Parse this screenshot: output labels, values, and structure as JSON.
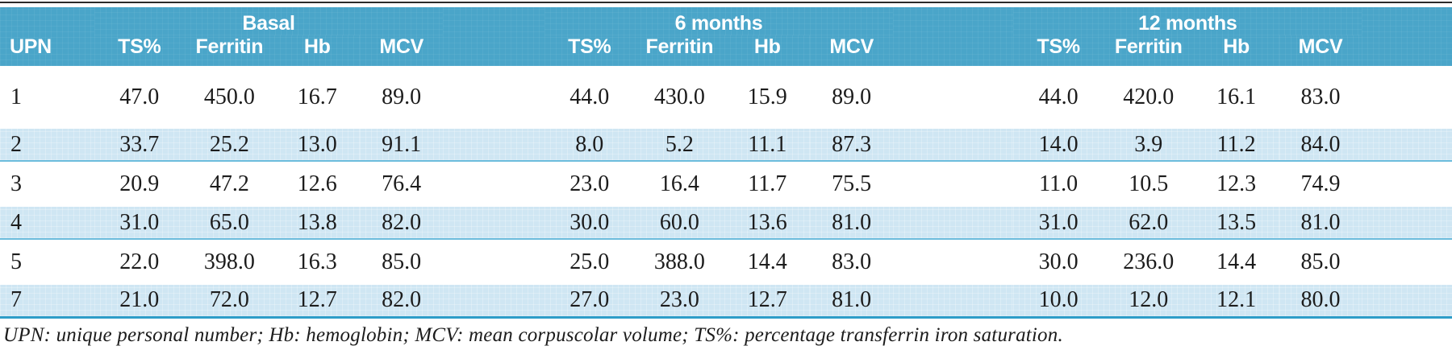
{
  "table": {
    "upn_header": "UPN",
    "groups": [
      "Basal",
      "6 months",
      "12 months"
    ],
    "sub_columns": [
      "TS%",
      "Ferritin",
      "Hb",
      "MCV"
    ],
    "rows": [
      {
        "upn": "1",
        "shaded": false,
        "values": [
          [
            "47.0",
            "450.0",
            "16.7",
            "89.0"
          ],
          [
            "44.0",
            "430.0",
            "15.9",
            "89.0"
          ],
          [
            "44.0",
            "420.0",
            "16.1",
            "83.0"
          ]
        ]
      },
      {
        "upn": "2",
        "shaded": true,
        "values": [
          [
            "33.7",
            "25.2",
            "13.0",
            "91.1"
          ],
          [
            "8.0",
            "5.2",
            "11.1",
            "87.3"
          ],
          [
            "14.0",
            "3.9",
            "11.2",
            "84.0"
          ]
        ]
      },
      {
        "upn": "3",
        "shaded": false,
        "values": [
          [
            "20.9",
            "47.2",
            "12.6",
            "76.4"
          ],
          [
            "23.0",
            "16.4",
            "11.7",
            "75.5"
          ],
          [
            "11.0",
            "10.5",
            "12.3",
            "74.9"
          ]
        ]
      },
      {
        "upn": "4",
        "shaded": true,
        "values": [
          [
            "31.0",
            "65.0",
            "13.8",
            "82.0"
          ],
          [
            "30.0",
            "60.0",
            "13.6",
            "81.0"
          ],
          [
            "31.0",
            "62.0",
            "13.5",
            "81.0"
          ]
        ]
      },
      {
        "upn": "5",
        "shaded": false,
        "values": [
          [
            "22.0",
            "398.0",
            "16.3",
            "85.0"
          ],
          [
            "25.0",
            "388.0",
            "14.4",
            "83.0"
          ],
          [
            "30.0",
            "236.0",
            "14.4",
            "85.0"
          ]
        ]
      },
      {
        "upn": "7",
        "shaded": true,
        "values": [
          [
            "21.0",
            "72.0",
            "12.7",
            "82.0"
          ],
          [
            "27.0",
            "23.0",
            "12.7",
            "81.0"
          ],
          [
            "10.0",
            "12.0",
            "12.1",
            "80.0"
          ]
        ]
      }
    ],
    "footnote": "UPN: unique personal number; Hb: hemoglobin; MCV: mean corpuscolar volume; TS%: percentage transferrin iron saturation."
  },
  "colors": {
    "header_bg": "#4aa5c9",
    "header_text": "#ffffff",
    "stripe_bg": "#cfe6f3",
    "stripe_border": "#6cbcdc",
    "bottom_rule": "#2e9dc8",
    "top_rule": "#2b2b2b",
    "body_text": "#1c1c1c"
  },
  "chart_data": {
    "type": "table",
    "title": "",
    "column_groups": [
      "Basal",
      "6 months",
      "12 months"
    ],
    "columns": [
      "UPN",
      "TS%",
      "Ferritin",
      "Hb",
      "MCV",
      "TS%",
      "Ferritin",
      "Hb",
      "MCV",
      "TS%",
      "Ferritin",
      "Hb",
      "MCV"
    ],
    "rows": [
      [
        "1",
        47.0,
        450.0,
        16.7,
        89.0,
        44.0,
        430.0,
        15.9,
        89.0,
        44.0,
        420.0,
        16.1,
        83.0
      ],
      [
        "2",
        33.7,
        25.2,
        13.0,
        91.1,
        8.0,
        5.2,
        11.1,
        87.3,
        14.0,
        3.9,
        11.2,
        84.0
      ],
      [
        "3",
        20.9,
        47.2,
        12.6,
        76.4,
        23.0,
        16.4,
        11.7,
        75.5,
        11.0,
        10.5,
        12.3,
        74.9
      ],
      [
        "4",
        31.0,
        65.0,
        13.8,
        82.0,
        30.0,
        60.0,
        13.6,
        81.0,
        31.0,
        62.0,
        13.5,
        81.0
      ],
      [
        "5",
        22.0,
        398.0,
        16.3,
        85.0,
        25.0,
        388.0,
        14.4,
        83.0,
        30.0,
        236.0,
        14.4,
        85.0
      ],
      [
        "7",
        21.0,
        72.0,
        12.7,
        82.0,
        27.0,
        23.0,
        12.7,
        81.0,
        10.0,
        12.0,
        12.1,
        80.0
      ]
    ],
    "footnote": "UPN: unique personal number; Hb: hemoglobin; MCV: mean corpuscolar volume; TS%: percentage transferrin iron saturation."
  }
}
